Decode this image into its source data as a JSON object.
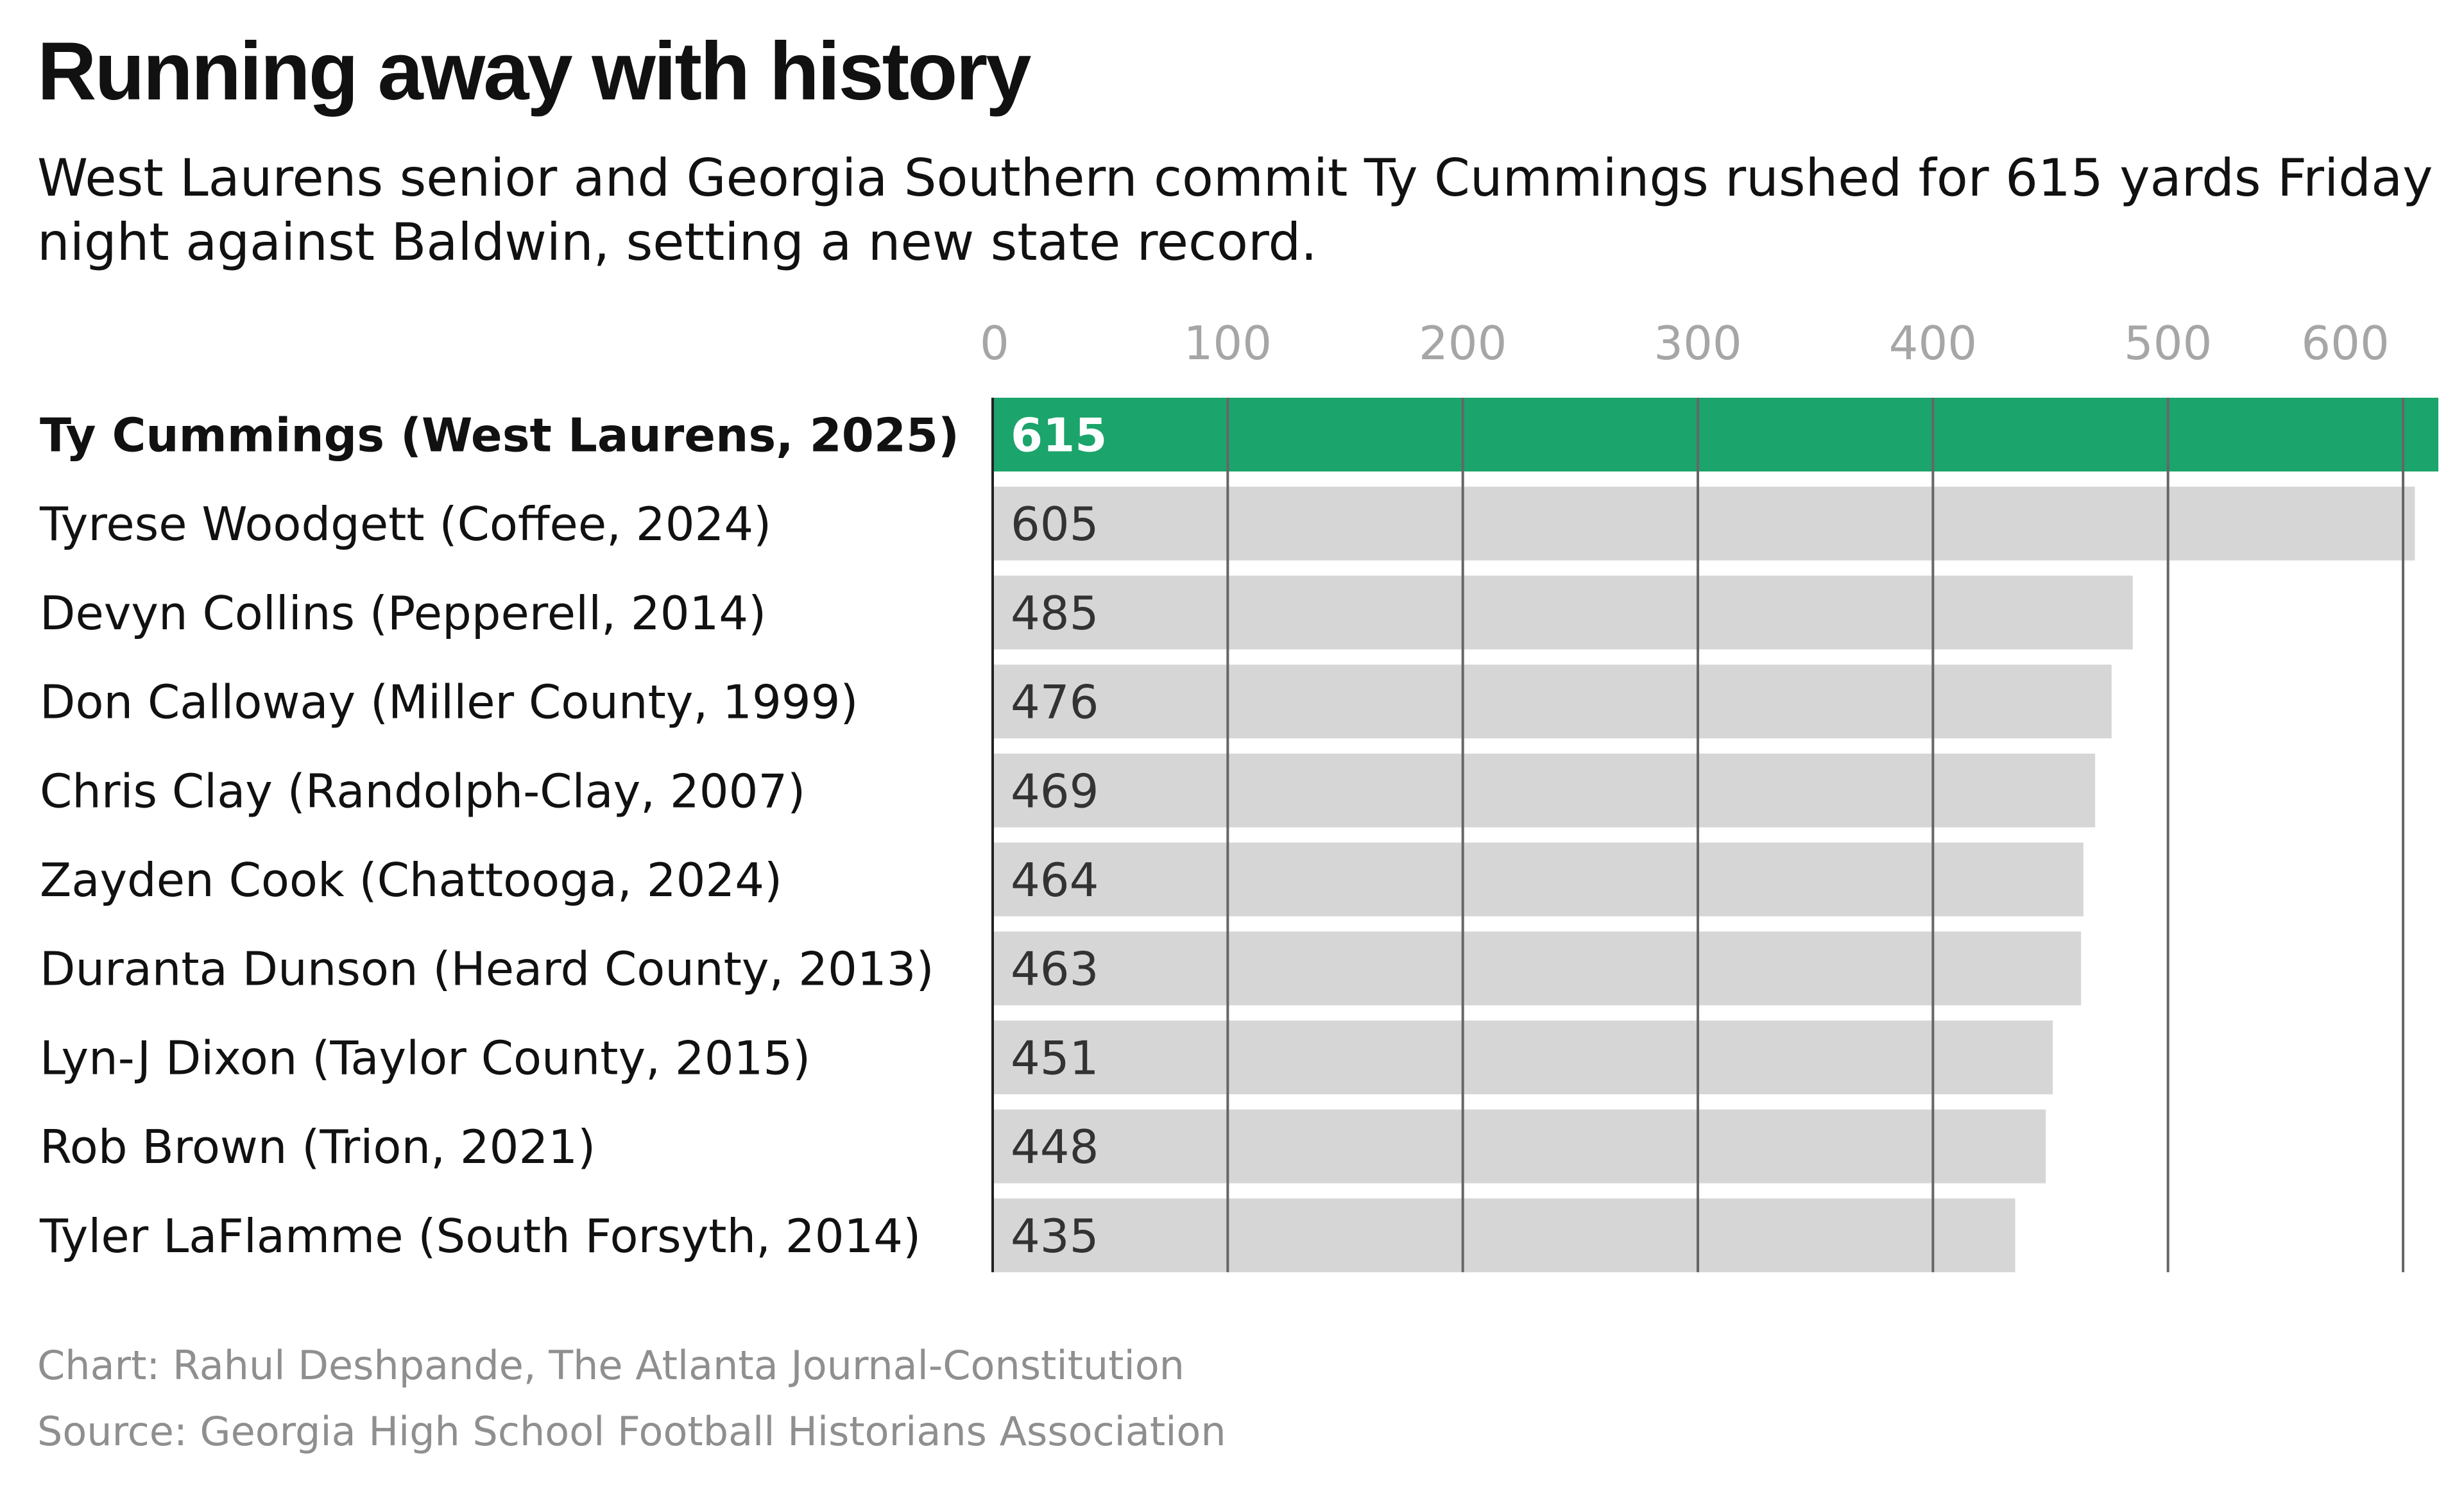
{
  "title": "Running away with history",
  "subtitle": "West Laurens senior and Georgia Southern commit Ty Cummings rushed for 615 yards Friday night against Baldwin, setting a new state record.",
  "credit": "Chart: Rahul Deshpande, The Atlanta Journal-Constitution",
  "source": "Source: Georgia High School Football Historians Association",
  "colors": {
    "highlight": "#1ba46b",
    "bar": "#d6d6d6",
    "axis_text": "#a6a6a6",
    "grid": "#666666",
    "text": "#111111"
  },
  "chart_data": {
    "type": "bar",
    "orientation": "horizontal",
    "title": "Running away with history",
    "xlim": [
      0,
      615
    ],
    "xticks": [
      0,
      100,
      200,
      300,
      400,
      500,
      600
    ],
    "xtick_labels": [
      "0",
      "100",
      "200",
      "300",
      "400",
      "500",
      "600"
    ],
    "grid": true,
    "highlight_index": 0,
    "categories": [
      "Ty Cummings (West Laurens, 2025)",
      "Tyrese Woodgett (Coffee, 2024)",
      "Devyn Collins (Pepperell, 2014)",
      "Don Calloway (Miller County, 1999)",
      "Chris Clay (Randolph-Clay, 2007)",
      "Zayden Cook (Chattooga, 2024)",
      "Duranta Dunson (Heard County, 2013)",
      "Lyn-J Dixon (Taylor County, 2015)",
      "Rob Brown (Trion, 2021)",
      "Tyler LaFlamme (South Forsyth, 2014)"
    ],
    "values": [
      615,
      605,
      485,
      476,
      469,
      464,
      463,
      451,
      448,
      435
    ],
    "value_labels": [
      "615",
      "605",
      "485",
      "476",
      "469",
      "464",
      "463",
      "451",
      "448",
      "435"
    ]
  }
}
